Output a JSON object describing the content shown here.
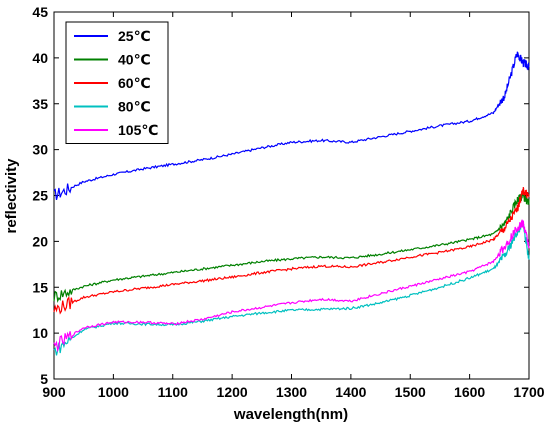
{
  "chart_data": {
    "type": "line",
    "xlabel": "wavelength(nm)",
    "ylabel": "reflectivity",
    "xlim": [
      900,
      1700
    ],
    "ylim": [
      5,
      45
    ],
    "x_ticks": [
      "900",
      "1000",
      "1100",
      "1200",
      "1300",
      "1400",
      "1500",
      "1600",
      "1700"
    ],
    "y_ticks": [
      "5",
      "10",
      "15",
      "20",
      "25",
      "30",
      "35",
      "40",
      "45"
    ],
    "grid": false,
    "legend_position": "top-left",
    "x": [
      900,
      950,
      1000,
      1050,
      1100,
      1150,
      1200,
      1250,
      1300,
      1350,
      1400,
      1450,
      1500,
      1550,
      1600,
      1640,
      1660,
      1680,
      1690,
      1700
    ],
    "series": [
      {
        "name": "25℃",
        "color": "#0000ff",
        "values": [
          25.0,
          26.5,
          27.3,
          27.9,
          28.4,
          28.9,
          29.5,
          30.2,
          30.8,
          31.0,
          30.8,
          31.4,
          32.0,
          32.6,
          33.1,
          34.0,
          36.0,
          40.5,
          39.5,
          39.0
        ]
      },
      {
        "name": "40℃",
        "color": "#008000",
        "values": [
          14.0,
          15.1,
          15.8,
          16.2,
          16.6,
          17.0,
          17.4,
          17.8,
          18.1,
          18.3,
          18.2,
          18.6,
          19.1,
          19.6,
          20.2,
          20.8,
          22.0,
          24.5,
          25.0,
          24.0
        ]
      },
      {
        "name": "60℃",
        "color": "#ff0000",
        "values": [
          12.5,
          13.9,
          14.5,
          14.9,
          15.3,
          15.7,
          16.1,
          16.6,
          17.0,
          17.3,
          17.2,
          17.7,
          18.3,
          18.8,
          19.4,
          20.2,
          21.5,
          23.5,
          25.5,
          25.0
        ]
      },
      {
        "name": "80℃",
        "color": "#00c0c0",
        "values": [
          8.0,
          10.4,
          11.1,
          11.0,
          10.9,
          11.3,
          11.8,
          12.2,
          12.5,
          12.6,
          12.7,
          13.3,
          14.1,
          15.0,
          16.0,
          17.0,
          18.5,
          21.0,
          22.0,
          18.0
        ]
      },
      {
        "name": "105℃",
        "color": "#ff00ff",
        "values": [
          8.5,
          10.6,
          11.2,
          11.2,
          11.0,
          11.5,
          12.3,
          12.8,
          13.3,
          13.7,
          13.5,
          14.3,
          15.1,
          15.9,
          16.7,
          17.8,
          19.5,
          21.5,
          22.0,
          19.5
        ]
      }
    ]
  }
}
